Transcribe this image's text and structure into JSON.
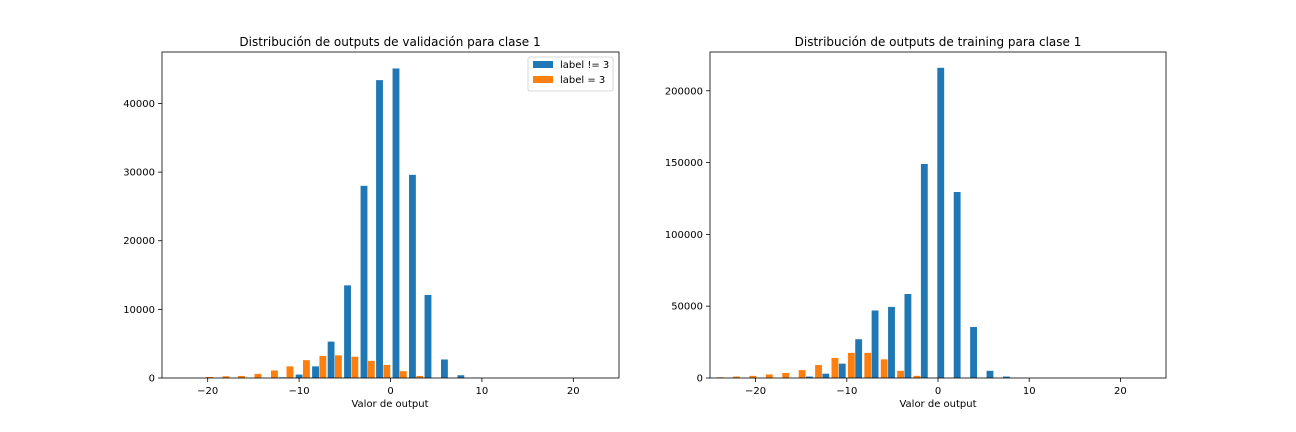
{
  "chart_data": [
    {
      "type": "bar",
      "title": "Distribución de outputs de validación para clase 1",
      "xlabel": "Valor de output",
      "ylabel": "",
      "xlim": [
        -25,
        25
      ],
      "ylim": [
        0,
        47500
      ],
      "xticks": [
        -20,
        -10,
        0,
        10,
        20
      ],
      "yticks": [
        0,
        10000,
        20000,
        30000,
        40000
      ],
      "grid": false,
      "legend": "top-right",
      "bar_width": 0.75,
      "series": [
        {
          "name": "label != 3",
          "color": "#1f77b4",
          "x": [
            -20.6,
            -18.8,
            -17.1,
            -15.3,
            -13.5,
            -11.8,
            -10.0,
            -8.2,
            -6.5,
            -4.7,
            -2.9,
            -1.2,
            0.6,
            2.4,
            4.1,
            5.9,
            7.7,
            9.4,
            11.2,
            13.0
          ],
          "values": [
            0,
            0,
            0,
            0,
            0,
            100,
            500,
            1700,
            5300,
            13500,
            28000,
            43400,
            45100,
            29600,
            12100,
            2700,
            400,
            50,
            0,
            0
          ]
        },
        {
          "name": "label = 3",
          "color": "#ff7f0e",
          "x": [
            -19.8,
            -18.0,
            -16.3,
            -14.5,
            -12.7,
            -11.0,
            -9.2,
            -7.4,
            -5.7,
            -3.9,
            -2.1,
            -0.4,
            1.4,
            3.2
          ],
          "values": [
            150,
            250,
            300,
            600,
            1100,
            1700,
            2600,
            3200,
            3300,
            3100,
            2500,
            1900,
            1000,
            300
          ]
        }
      ]
    },
    {
      "type": "bar",
      "title": "Distribución de outputs de training para clase 1",
      "xlabel": "Valor de output",
      "ylabel": "",
      "xlim": [
        -25,
        25
      ],
      "ylim": [
        0,
        227000
      ],
      "xticks": [
        -20,
        -10,
        0,
        10,
        20
      ],
      "yticks": [
        0,
        50000,
        100000,
        150000,
        200000
      ],
      "grid": false,
      "legend": "none",
      "bar_width": 0.75,
      "series": [
        {
          "name": "",
          "color": "#1f77b4",
          "x": [
            -23.1,
            -21.3,
            -19.5,
            -17.7,
            -15.9,
            -14.1,
            -12.3,
            -10.5,
            -8.7,
            -6.9,
            -5.1,
            -3.3,
            -1.5,
            0.3,
            2.1,
            3.9,
            5.7,
            7.5,
            9.3
          ],
          "values": [
            0,
            0,
            0,
            0,
            0,
            1000,
            3000,
            10000,
            27000,
            47000,
            49500,
            58500,
            149000,
            216000,
            129500,
            35500,
            5000,
            1000,
            0
          ]
        },
        {
          "name": "",
          "color": "#ff7f0e",
          "x": [
            -23.9,
            -22.1,
            -20.3,
            -18.5,
            -16.7,
            -14.9,
            -13.1,
            -11.3,
            -9.5,
            -7.7,
            -5.9,
            -4.1,
            -2.3,
            -0.5
          ],
          "values": [
            500,
            1000,
            1500,
            2500,
            3500,
            5500,
            9000,
            14000,
            17500,
            17500,
            13000,
            5000,
            1500,
            0
          ]
        }
      ]
    }
  ]
}
